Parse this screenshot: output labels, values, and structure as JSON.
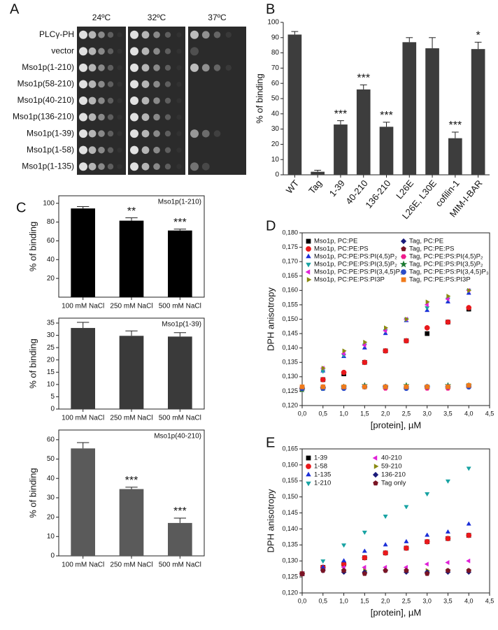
{
  "chart_data": [
    {
      "type": "image",
      "panel": "A",
      "columns": [
        "24ºC",
        "32ºC",
        "37ºC"
      ],
      "rows": [
        "PLCγ-PH",
        "vector",
        "Mso1p(1-210)",
        "Mso1p(58-210)",
        "Mso1p(40-210)",
        "Mso1p(136-210)",
        "Mso1p(1-39)",
        "Mso1p(1-58)",
        "Mso1p(1-135)"
      ]
    },
    {
      "type": "bar",
      "panel": "B",
      "ylabel": "% of binding",
      "color": "#3d3d3d",
      "categories": [
        "WT",
        "Tag",
        "1-39",
        "40-210",
        "136-210",
        "L26E",
        "L26E, L30E",
        "cofilin-1",
        "MIM-I-BAR"
      ],
      "values": [
        92,
        2,
        33,
        56,
        31.5,
        87,
        83,
        24,
        82.5
      ],
      "errors": [
        2,
        1,
        2.5,
        3,
        3,
        3,
        7,
        4,
        4.5
      ],
      "significance": [
        null,
        null,
        "***",
        "***",
        "***",
        null,
        null,
        "***",
        "*"
      ],
      "ylim": [
        0,
        100
      ],
      "yticks": [
        0,
        10,
        20,
        30,
        40,
        50,
        60,
        70,
        80,
        90,
        100
      ]
    },
    {
      "type": "bar",
      "panel": "C",
      "annotation": "Mso1p(1-210)",
      "ylabel": "% of binding",
      "color": "#000000",
      "categories": [
        "100 mM NaCl",
        "250 mM NaCl",
        "500 mM NaCl"
      ],
      "values": [
        94.5,
        81.5,
        71
      ],
      "errors": [
        2,
        3,
        1.5
      ],
      "significance": [
        null,
        "**",
        "***"
      ],
      "ylim": [
        0,
        108
      ],
      "yticks": [
        20,
        40,
        60,
        80,
        100
      ]
    },
    {
      "type": "bar",
      "annotation": "Mso1p(1-39)",
      "ylabel": "% of binding",
      "color": "#3a3a3a",
      "categories": [
        "100 mM NaCl",
        "250 mM NaCl",
        "500 mM NaCl"
      ],
      "values": [
        33,
        29.8,
        29.5
      ],
      "errors": [
        2.3,
        2,
        1.6
      ],
      "ylim": [
        0,
        37
      ],
      "yticks": [
        0,
        5,
        10,
        15,
        20,
        25,
        30,
        35
      ]
    },
    {
      "type": "bar",
      "annotation": "Mso1p(40-210)",
      "ylabel": "% of binding",
      "color": "#5a5a5a",
      "categories": [
        "100 mM NaCl",
        "250 mM NaCl",
        "500 mM NaCl"
      ],
      "values": [
        55.5,
        34.5,
        17
      ],
      "errors": [
        3,
        1,
        2.5
      ],
      "significance": [
        null,
        "***",
        "***"
      ],
      "ylim": [
        0,
        65
      ],
      "yticks": [
        0,
        10,
        20,
        30,
        40,
        50,
        60
      ]
    },
    {
      "type": "scatter",
      "panel": "D",
      "xlabel": "[protein], µM",
      "ylabel": "DPH anisotropy",
      "x": [
        0,
        0.5,
        1,
        1.5,
        2,
        2.5,
        3,
        3.5,
        4
      ],
      "xlim": [
        0,
        4.5
      ],
      "xticks": [
        {
          "value": 0,
          "label": "0,0"
        },
        {
          "value": 0.5,
          "label": "0,5"
        },
        {
          "value": 1,
          "label": "1,0"
        },
        {
          "value": 1.5,
          "label": "1,5"
        },
        {
          "value": 2,
          "label": "2,0"
        },
        {
          "value": 2.5,
          "label": "2,5"
        },
        {
          "value": 3,
          "label": "3,0"
        },
        {
          "value": 3.5,
          "label": "3,5"
        },
        {
          "value": 4,
          "label": "4,0"
        },
        {
          "value": 4.5,
          "label": "4,5"
        }
      ],
      "ylim": [
        0.12,
        0.18
      ],
      "yticks": [
        {
          "value": 0.12,
          "label": "0,120"
        },
        {
          "value": 0.125,
          "label": "0,125"
        },
        {
          "value": 0.13,
          "label": "0,130"
        },
        {
          "value": 0.135,
          "label": "0,135"
        },
        {
          "value": 0.14,
          "label": "0,140"
        },
        {
          "value": 0.145,
          "label": "0,145"
        },
        {
          "value": 0.15,
          "label": "0,150"
        },
        {
          "value": 0.155,
          "label": "0,155"
        },
        {
          "value": 0.16,
          "label": "0,160"
        },
        {
          "value": 0.165,
          "label": "0,165"
        },
        {
          "value": 0.17,
          "label": "0,170"
        },
        {
          "value": 0.175,
          "label": "0,175"
        },
        {
          "value": 0.18,
          "label": "0,180"
        }
      ],
      "series": [
        {
          "name": "Mso1p, PC:PE",
          "color": "#000000",
          "marker": "square",
          "values": [
            0.126,
            0.129,
            0.131,
            0.135,
            0.139,
            0.1425,
            0.145,
            0.149,
            0.1535
          ]
        },
        {
          "name": "Mso1p, PC:PE:PS",
          "color": "#e8191c",
          "marker": "circle",
          "values": [
            0.126,
            0.129,
            0.1315,
            0.135,
            0.139,
            0.1425,
            0.147,
            0.149,
            0.154
          ]
        },
        {
          "name": "Mso1p, PC:PE:PS:PI(4,5)P₂",
          "color": "#1b2fd8",
          "marker": "triangle-up",
          "values": [
            0.126,
            0.132,
            0.137,
            0.14,
            0.145,
            0.1495,
            0.153,
            0.156,
            0.159
          ]
        },
        {
          "name": "Mso1p, PC:PE:PS:PI(3,5)P₂",
          "color": "#18a3a3",
          "marker": "triangle-down",
          "values": [
            0.126,
            0.132,
            0.1375,
            0.141,
            0.146,
            0.15,
            0.154,
            0.157,
            0.16
          ]
        },
        {
          "name": "Mso1p, PC:PE:PS:PI(3,4,5)P₃",
          "color": "#e021d8",
          "marker": "triangle-left",
          "values": [
            0.126,
            0.133,
            0.138,
            0.141,
            0.146,
            0.15,
            0.155,
            0.157,
            0.16
          ]
        },
        {
          "name": "Mso1p, PC:PE:PS:PI3P",
          "color": "#8a8a12",
          "marker": "triangle-right",
          "values": [
            0.126,
            0.133,
            0.139,
            0.142,
            0.147,
            0.15,
            0.156,
            0.158,
            0.16
          ]
        },
        {
          "name": "Tag, PC:PE",
          "color": "#1a1a7a",
          "marker": "diamond",
          "values": [
            0.126,
            0.1265,
            0.1265,
            0.1265,
            0.1265,
            0.1265,
            0.1265,
            0.1265,
            0.127
          ]
        },
        {
          "name": "Tag, PC:PE:PS",
          "color": "#7a1424",
          "marker": "pentagon",
          "values": [
            0.126,
            0.126,
            0.1265,
            0.1265,
            0.1265,
            0.1265,
            0.1265,
            0.1265,
            0.1265
          ]
        },
        {
          "name": "Tag, PC:PE:PS:PI(4,5)P₂",
          "color": "#f01a8c",
          "marker": "hexagon",
          "values": [
            0.126,
            0.1265,
            0.126,
            0.1265,
            0.126,
            0.126,
            0.126,
            0.126,
            0.1265
          ]
        },
        {
          "name": "Tag, PC:PE:PS:PI(3,5)P₂",
          "color": "#1a7a30",
          "marker": "star",
          "values": [
            0.1255,
            0.126,
            0.1265,
            0.127,
            0.1265,
            0.127,
            0.1265,
            0.127,
            0.127
          ]
        },
        {
          "name": "Tag, PC:PE:PS:PI(3,4,5)P₃",
          "color": "#2a4cc8",
          "marker": "circle",
          "values": [
            0.126,
            0.126,
            0.126,
            0.1265,
            0.1265,
            0.126,
            0.1265,
            0.1265,
            0.1265
          ]
        },
        {
          "name": "Tag, PC:PE:PS:PI3P",
          "color": "#f07a1a",
          "marker": "square",
          "values": [
            0.1265,
            0.1265,
            0.1265,
            0.1265,
            0.1265,
            0.1265,
            0.1265,
            0.1265,
            0.127
          ]
        }
      ]
    },
    {
      "type": "scatter",
      "panel": "E",
      "xlabel": "[protein], µM",
      "ylabel": "DPH anisotropy",
      "x": [
        0,
        0.5,
        1,
        1.5,
        2,
        2.5,
        3,
        3.5,
        4
      ],
      "xlim": [
        0,
        4.5
      ],
      "xticks": [
        {
          "value": 0,
          "label": "0,0"
        },
        {
          "value": 0.5,
          "label": "0,5"
        },
        {
          "value": 1,
          "label": "1,0"
        },
        {
          "value": 1.5,
          "label": "1,5"
        },
        {
          "value": 2,
          "label": "2,0"
        },
        {
          "value": 2.5,
          "label": "2,5"
        },
        {
          "value": 3,
          "label": "3,0"
        },
        {
          "value": 3.5,
          "label": "3,5"
        },
        {
          "value": 4,
          "label": "4,0"
        },
        {
          "value": 4.5,
          "label": "4,5"
        }
      ],
      "ylim": [
        0.12,
        0.165
      ],
      "yticks": [
        {
          "value": 0.12,
          "label": "0,120"
        },
        {
          "value": 0.125,
          "label": "0,125"
        },
        {
          "value": 0.13,
          "label": "0,130"
        },
        {
          "value": 0.135,
          "label": "0,135"
        },
        {
          "value": 0.14,
          "label": "0,140"
        },
        {
          "value": 0.145,
          "label": "0,145"
        },
        {
          "value": 0.15,
          "label": "0,150"
        },
        {
          "value": 0.155,
          "label": "0,155"
        },
        {
          "value": 0.16,
          "label": "0,160"
        },
        {
          "value": 0.165,
          "label": "0,165"
        }
      ],
      "series": [
        {
          "name": "1-39",
          "color": "#000000",
          "marker": "square",
          "values": [
            0.126,
            0.128,
            0.129,
            0.131,
            0.1325,
            0.134,
            0.136,
            0.137,
            0.138
          ]
        },
        {
          "name": "1-58",
          "color": "#e8191c",
          "marker": "circle",
          "values": [
            0.126,
            0.128,
            0.129,
            0.131,
            0.1325,
            0.134,
            0.136,
            0.137,
            0.138
          ]
        },
        {
          "name": "1-135",
          "color": "#1b2fd8",
          "marker": "triangle-up",
          "values": [
            0.126,
            0.128,
            0.13,
            0.133,
            0.135,
            0.136,
            0.138,
            0.139,
            0.1415
          ]
        },
        {
          "name": "1-210",
          "color": "#18a3a3",
          "marker": "triangle-down",
          "values": [
            0.126,
            0.13,
            0.135,
            0.139,
            0.144,
            0.147,
            0.151,
            0.155,
            0.159
          ]
        },
        {
          "name": "40-210",
          "color": "#e021d8",
          "marker": "triangle-left",
          "values": [
            0.126,
            0.127,
            0.128,
            0.128,
            0.128,
            0.128,
            0.129,
            0.1295,
            0.13
          ]
        },
        {
          "name": "59-210",
          "color": "#8a8a12",
          "marker": "triangle-right",
          "values": [
            0.126,
            0.127,
            0.127,
            0.127,
            0.127,
            0.127,
            0.127,
            0.127,
            0.127
          ]
        },
        {
          "name": "136-210",
          "color": "#1a1a7a",
          "marker": "diamond",
          "values": [
            0.126,
            0.127,
            0.1265,
            0.1265,
            0.127,
            0.1265,
            0.1265,
            0.1265,
            0.1265
          ]
        },
        {
          "name": "Tag only",
          "color": "#7a1424",
          "marker": "pentagon",
          "values": [
            0.126,
            0.127,
            0.127,
            0.126,
            0.127,
            0.127,
            0.126,
            0.127,
            0.127
          ]
        }
      ]
    }
  ]
}
